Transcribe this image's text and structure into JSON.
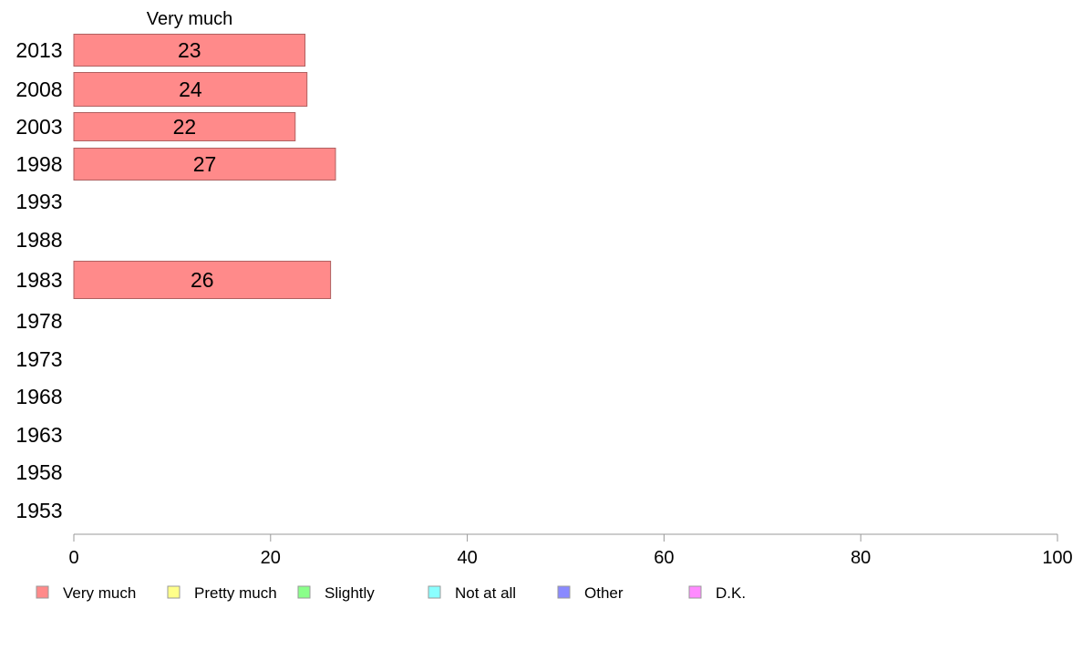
{
  "chart_data": {
    "type": "bar",
    "orientation": "horizontal",
    "series_header": "Very much",
    "categories": [
      "2013",
      "2008",
      "2003",
      "1998",
      "1993",
      "1988",
      "1983",
      "1978",
      "1973",
      "1968",
      "1963",
      "1958",
      "1953"
    ],
    "series": [
      {
        "name": "Very much",
        "values": [
          23.5,
          23.7,
          22.5,
          26.6,
          null,
          null,
          26.1,
          null,
          null,
          null,
          null,
          null,
          null
        ],
        "labels": [
          "23",
          "24",
          "22",
          "27",
          "",
          "",
          "26",
          "",
          "",
          "",
          "",
          "",
          ""
        ]
      }
    ],
    "xlim": [
      0,
      100
    ],
    "xticks": [
      "0",
      "20",
      "40",
      "60",
      "80",
      "100"
    ],
    "grid": false,
    "legend_position": "bottom",
    "legend": [
      {
        "label": "Very much",
        "color": "#ff8a8a"
      },
      {
        "label": "Pretty much",
        "color": "#ffff8a"
      },
      {
        "label": "Slightly",
        "color": "#8aff8a"
      },
      {
        "label": "Not at all",
        "color": "#8affff"
      },
      {
        "label": "Other",
        "color": "#8a8aff"
      },
      {
        "label": "D.K.",
        "color": "#ff8aff"
      }
    ],
    "bar_color": "#ff8a8a",
    "bar_border": "#b06060"
  }
}
